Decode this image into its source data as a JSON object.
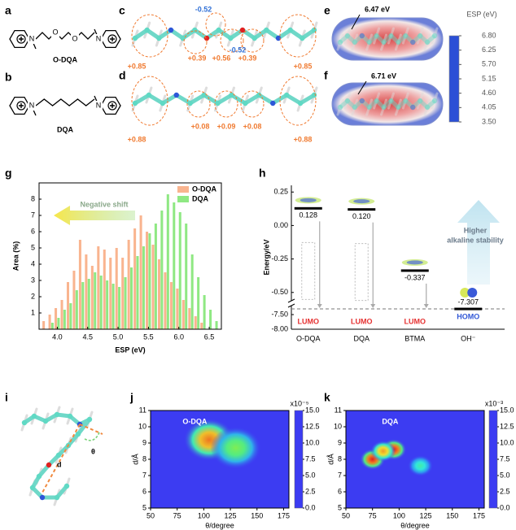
{
  "figure": {
    "panel_labels": [
      "a",
      "b",
      "c",
      "d",
      "e",
      "f",
      "g",
      "h",
      "i",
      "j",
      "k"
    ],
    "a": {
      "name": "O-DQA",
      "atoms": [
        "N",
        "O",
        "O",
        "N"
      ]
    },
    "b": {
      "name": "DQA",
      "atoms": [
        "N",
        "N"
      ]
    },
    "c": {
      "charges": [
        "-0.52",
        "-0.52",
        "+0.85",
        "+0.39",
        "+0.56",
        "+0.39",
        "+0.85"
      ]
    },
    "d": {
      "charges": [
        "+0.88",
        "+0.08",
        "+0.09",
        "+0.08",
        "+0.88"
      ]
    },
    "e": {
      "energy": "6.47 eV"
    },
    "f": {
      "energy": "6.71 eV"
    },
    "esp_colorbar": {
      "title": "ESP  (eV)",
      "clim": [
        3.5,
        6.8
      ],
      "ticks": [
        {
          "value": 6.8,
          "label": "6.80"
        },
        6.25,
        {
          "value": 5.7,
          "label": "5.70"
        },
        5.15,
        {
          "value": 4.6,
          "label": "4.60"
        },
        4.05,
        {
          "value": 3.5,
          "label": "3.50"
        }
      ],
      "colors": [
        "#2b4fd6",
        "#ffffff",
        "#d92b2b"
      ]
    },
    "i": {
      "labels": [
        "d",
        "θ"
      ]
    }
  },
  "chart_data": [
    {
      "type": "bar",
      "xlabel": "ESP (eV)",
      "ylabel": "Area (%)",
      "x": [
        3.8,
        3.9,
        4.0,
        4.1,
        4.2,
        4.3,
        4.4,
        4.5,
        4.6,
        4.7,
        4.8,
        4.9,
        5.0,
        5.1,
        5.2,
        5.3,
        5.4,
        5.5,
        5.6,
        5.7,
        5.8,
        5.9,
        6.0,
        6.1,
        6.2,
        6.3,
        6.4,
        6.5,
        6.6
      ],
      "series": [
        {
          "name": "O-DQA",
          "color": "#f9b48f",
          "values": [
            0.5,
            0.9,
            1.3,
            1.8,
            2.9,
            3.6,
            5.5,
            4.6,
            3.9,
            5.1,
            4.9,
            4.4,
            5.0,
            4.4,
            5.5,
            6.2,
            7.0,
            6.0,
            5.2,
            4.3,
            3.5,
            2.9,
            2.5,
            1.8,
            1.3,
            0.8,
            0.4,
            0,
            0
          ]
        },
        {
          "name": "DQA",
          "color": "#8fe883",
          "values": [
            0,
            0.4,
            0.7,
            1.2,
            1.6,
            2.4,
            2.9,
            3.1,
            3.5,
            3.3,
            3.0,
            2.8,
            2.6,
            3.2,
            3.8,
            4.5,
            5.1,
            5.9,
            6.5,
            7.3,
            8.3,
            7.8,
            7.2,
            6.5,
            4.6,
            3.2,
            2.1,
            1.2,
            0.5
          ]
        }
      ],
      "xlim": [
        3.7,
        6.7
      ],
      "ylim": [
        0,
        9
      ],
      "xticks": [
        {
          "value": 4,
          "label": "4.0"
        },
        4.5,
        {
          "value": 5,
          "label": "5.0"
        },
        5.5,
        {
          "value": 6,
          "label": "6.0"
        },
        6.5
      ],
      "yticks": [
        1,
        2,
        3,
        4,
        5,
        6,
        7,
        8
      ],
      "legend": "upper right",
      "annotation": "Negative shift"
    },
    {
      "type": "energy-levels",
      "ylabel": "Energy/eV",
      "categories": [
        "O-DQA",
        "DQA",
        "BTMA",
        "OH⁻"
      ],
      "values": [
        0.128,
        0.12,
        -0.337,
        -7.307
      ],
      "value_labels": [
        "0.128",
        "0.120",
        "-0.337",
        "-7.307"
      ],
      "orbital_labels": [
        "LUMO",
        "LUMO",
        "LUMO",
        "HOMO"
      ],
      "orbital_colors": [
        "#e53030",
        "#e53030",
        "#e53030",
        "#2f56d6"
      ],
      "ylim": [
        -0.55,
        0.3
      ],
      "ylim_lower": [
        -8.0,
        -7.25
      ],
      "yticks": [
        0.25,
        {
          "value": 0,
          "label": "0.00"
        },
        -0.25,
        {
          "value": -0.5,
          "label": "-0.50"
        },
        {
          "value": -7.5,
          "label": "-7.50"
        },
        {
          "value": -8,
          "label": "-8.00"
        }
      ],
      "annotation": [
        "Higher",
        "alkaline stability"
      ]
    },
    {
      "type": "heatmap",
      "title": "O-DQA",
      "xlabel": "θ/degree",
      "ylabel": "d/Å",
      "xlim": [
        50,
        180
      ],
      "ylim": [
        5,
        11
      ],
      "xticks": [
        50,
        75,
        100,
        125,
        150,
        175
      ],
      "yticks": [
        5,
        6,
        7,
        8,
        9,
        10,
        11
      ],
      "clim": [
        0,
        15
      ],
      "cticks": [
        {
          "value": 0,
          "label": "0.0"
        },
        2.5,
        {
          "value": 5,
          "label": "5.0"
        },
        7.5,
        {
          "value": 10,
          "label": "10.0"
        },
        12.5,
        {
          "value": 15,
          "label": "15.0"
        }
      ],
      "cscale_label": "x10⁻⁵",
      "colormap": [
        "#3c3cf2",
        "#2f8ff2",
        "#2fe6e0",
        "#63ef5c",
        "#efe632",
        "#f08a22",
        "#e41e1e"
      ],
      "hotspots": {
        "x": [
          105,
          130
        ],
        "y": [
          9.2,
          8.7
        ],
        "values": [
          13,
          8
        ]
      }
    },
    {
      "type": "heatmap",
      "title": "DQA",
      "xlabel": "θ/degree",
      "ylabel": "d/Å",
      "xlim": [
        50,
        180
      ],
      "ylim": [
        5,
        11
      ],
      "xticks": [
        50,
        75,
        100,
        125,
        150,
        175
      ],
      "yticks": [
        5,
        6,
        7,
        8,
        9,
        10,
        11
      ],
      "clim": [
        0,
        15
      ],
      "cticks": [
        {
          "value": 0,
          "label": "0.0"
        },
        2.5,
        {
          "value": 5,
          "label": "5.0"
        },
        7.5,
        {
          "value": 10,
          "label": "10.0"
        },
        12.5,
        {
          "value": 15,
          "label": "15.0"
        }
      ],
      "cscale_label": "x10⁻³",
      "colormap": [
        "#3c3cf2",
        "#2f8ff2",
        "#2fe6e0",
        "#63ef5c",
        "#efe632",
        "#f08a22",
        "#e41e1e"
      ],
      "hotspots": {
        "x": [
          95,
          75,
          120,
          85
        ],
        "y": [
          8.6,
          8.0,
          7.6,
          8.5
        ],
        "values": [
          15,
          15,
          6,
          12
        ]
      }
    }
  ]
}
